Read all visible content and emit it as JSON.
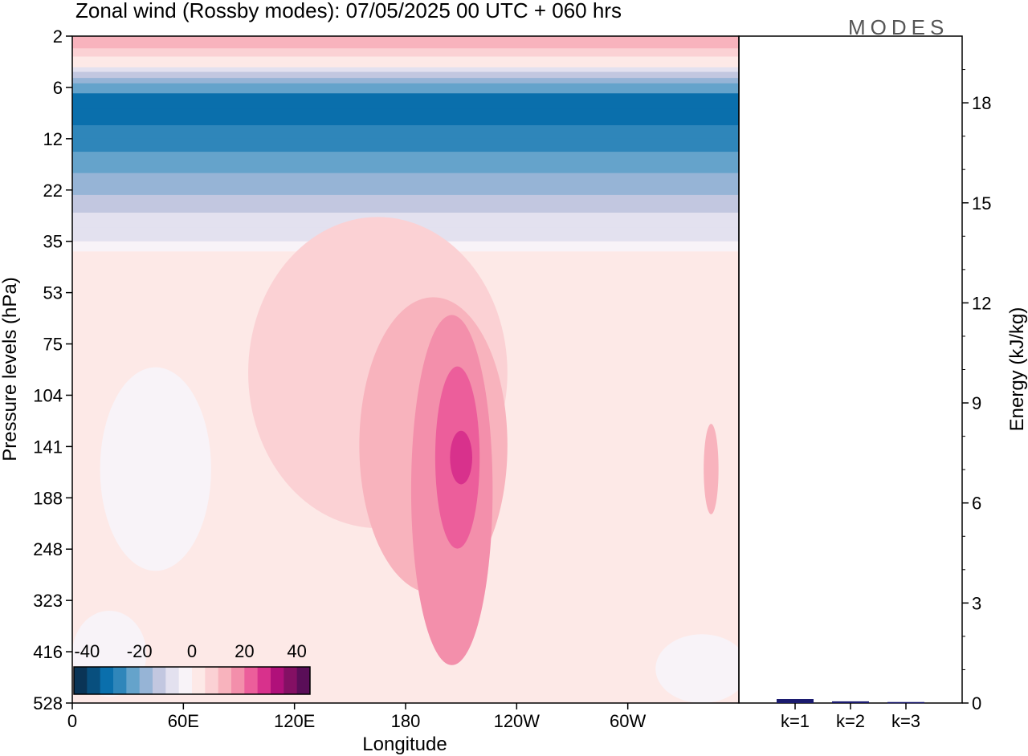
{
  "chart_data": [
    {
      "type": "heatmap",
      "title": "Zonal wind (Rossby modes):  07/05/2025  00 UTC  + 060 hrs",
      "xlabel": "Longitude",
      "ylabel": "Pressure levels (hPa)",
      "x_ticks": [
        "0",
        "60E",
        "120E",
        "180",
        "120W",
        "60W"
      ],
      "y_ticks": [
        "2",
        "6",
        "12",
        "22",
        "35",
        "53",
        "75",
        "104",
        "141",
        "188",
        "248",
        "323",
        "416",
        "528"
      ],
      "colorbar": {
        "tick_labels": [
          "-40",
          "-20",
          "0",
          "20",
          "40"
        ],
        "levels": [
          -45,
          -40,
          -35,
          -30,
          -25,
          -20,
          -15,
          -10,
          -5,
          0,
          5,
          10,
          15,
          20,
          25,
          30,
          35,
          40,
          45
        ],
        "colors": [
          "#0a3456",
          "#084f7e",
          "#0a6fac",
          "#2f86ba",
          "#65a3cb",
          "#96b4d6",
          "#c2c7e0",
          "#e3e1ef",
          "#f8f3f8",
          "#fde9e7",
          "#fbd1d4",
          "#f8b3bd",
          "#f38fab",
          "#ec5e9b",
          "#d8318c",
          "#b0107a",
          "#841064",
          "#5a0e58"
        ]
      },
      "bands": [
        {
          "p": 2,
          "value": 12
        },
        {
          "p": 2.6,
          "value": 8
        },
        {
          "p": 3.1,
          "value": 4
        },
        {
          "p": 3.5,
          "value": 0
        },
        {
          "p": 3.9,
          "value": -8
        },
        {
          "p": 4.3,
          "value": -14
        },
        {
          "p": 4.9,
          "value": -19
        },
        {
          "p": 5.5,
          "value": -24
        },
        {
          "p": 6.5,
          "value": -31
        },
        {
          "p": 8,
          "value": -34
        },
        {
          "p": 10,
          "value": -29
        },
        {
          "p": 12,
          "value": -26
        },
        {
          "p": 14,
          "value": -23
        },
        {
          "p": 18,
          "value": -19
        },
        {
          "p": 23,
          "value": -14
        },
        {
          "p": 27,
          "value": -10
        },
        {
          "p": 31,
          "value": -6
        },
        {
          "p": 35,
          "value": -2
        },
        {
          "p": 38,
          "value": 2
        },
        {
          "p": 528,
          "value": 2
        }
      ],
      "features": [
        {
          "lon": 165,
          "p": 90,
          "value": 7,
          "lon_w": 70,
          "p_w": 0.9
        },
        {
          "lon": 195,
          "p": 140,
          "value": 12,
          "lon_w": 40,
          "p_w": 0.8
        },
        {
          "lon": 205,
          "p": 180,
          "value": 16,
          "lon_w": 22,
          "p_w": 0.9
        },
        {
          "lon": 208,
          "p": 150,
          "value": 22,
          "lon_w": 12,
          "p_w": 0.5
        },
        {
          "lon": 210,
          "p": 150,
          "value": 26,
          "lon_w": 6,
          "p_w": 0.15
        },
        {
          "lon": 345,
          "p": 160,
          "value": 12,
          "lon_w": 4,
          "p_w": 0.25
        },
        {
          "lon": 295,
          "p": 90,
          "value": 0,
          "lon_w": 8,
          "p_w": 0.08
        },
        {
          "lon": 45,
          "p": 160,
          "value": -4,
          "lon_w": 30,
          "p_w": 0.55
        },
        {
          "lon": 20,
          "p": 420,
          "value": -4,
          "lon_w": 20,
          "p_w": 0.2
        },
        {
          "lon": 340,
          "p": 450,
          "value": -4,
          "lon_w": 25,
          "p_w": 0.3
        }
      ]
    },
    {
      "type": "bar",
      "categories": [
        "k=1",
        "k=2",
        "k=3"
      ],
      "values": [
        0.12,
        0.05,
        0.03
      ],
      "ylabel": "Energy (kJ/kg)",
      "y_ticks": [
        "0",
        "3",
        "6",
        "9",
        "12",
        "15",
        "18"
      ],
      "ylim": [
        0,
        20
      ],
      "bar_color": "#1a1a6e"
    }
  ],
  "logo": {
    "text": "MODES"
  }
}
